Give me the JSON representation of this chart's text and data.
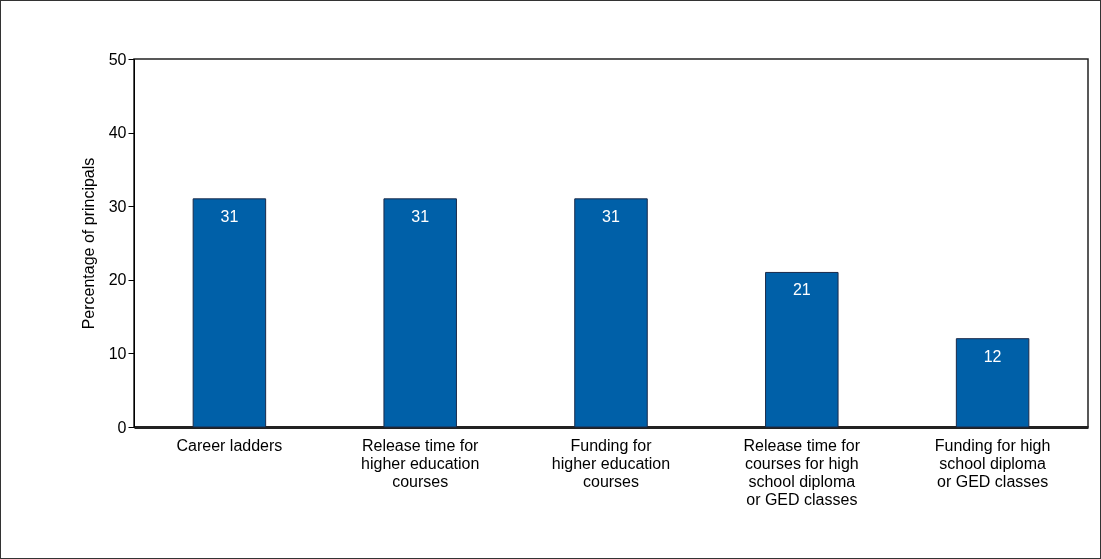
{
  "chart_data": {
    "type": "bar",
    "categories": [
      "Career ladders",
      "Release time for higher education courses",
      "Funding for higher education courses",
      "Release time for courses for high school diploma or GED classes",
      "Funding for high school diploma or GED classes"
    ],
    "values": [
      31,
      31,
      31,
      21,
      12
    ],
    "color": "#0060a8",
    "ylabel": "Percentage of principals",
    "ylim": [
      0,
      50
    ],
    "yticks": [
      0,
      10,
      20,
      30,
      40,
      50
    ],
    "data_labels": true,
    "grid": false
  }
}
